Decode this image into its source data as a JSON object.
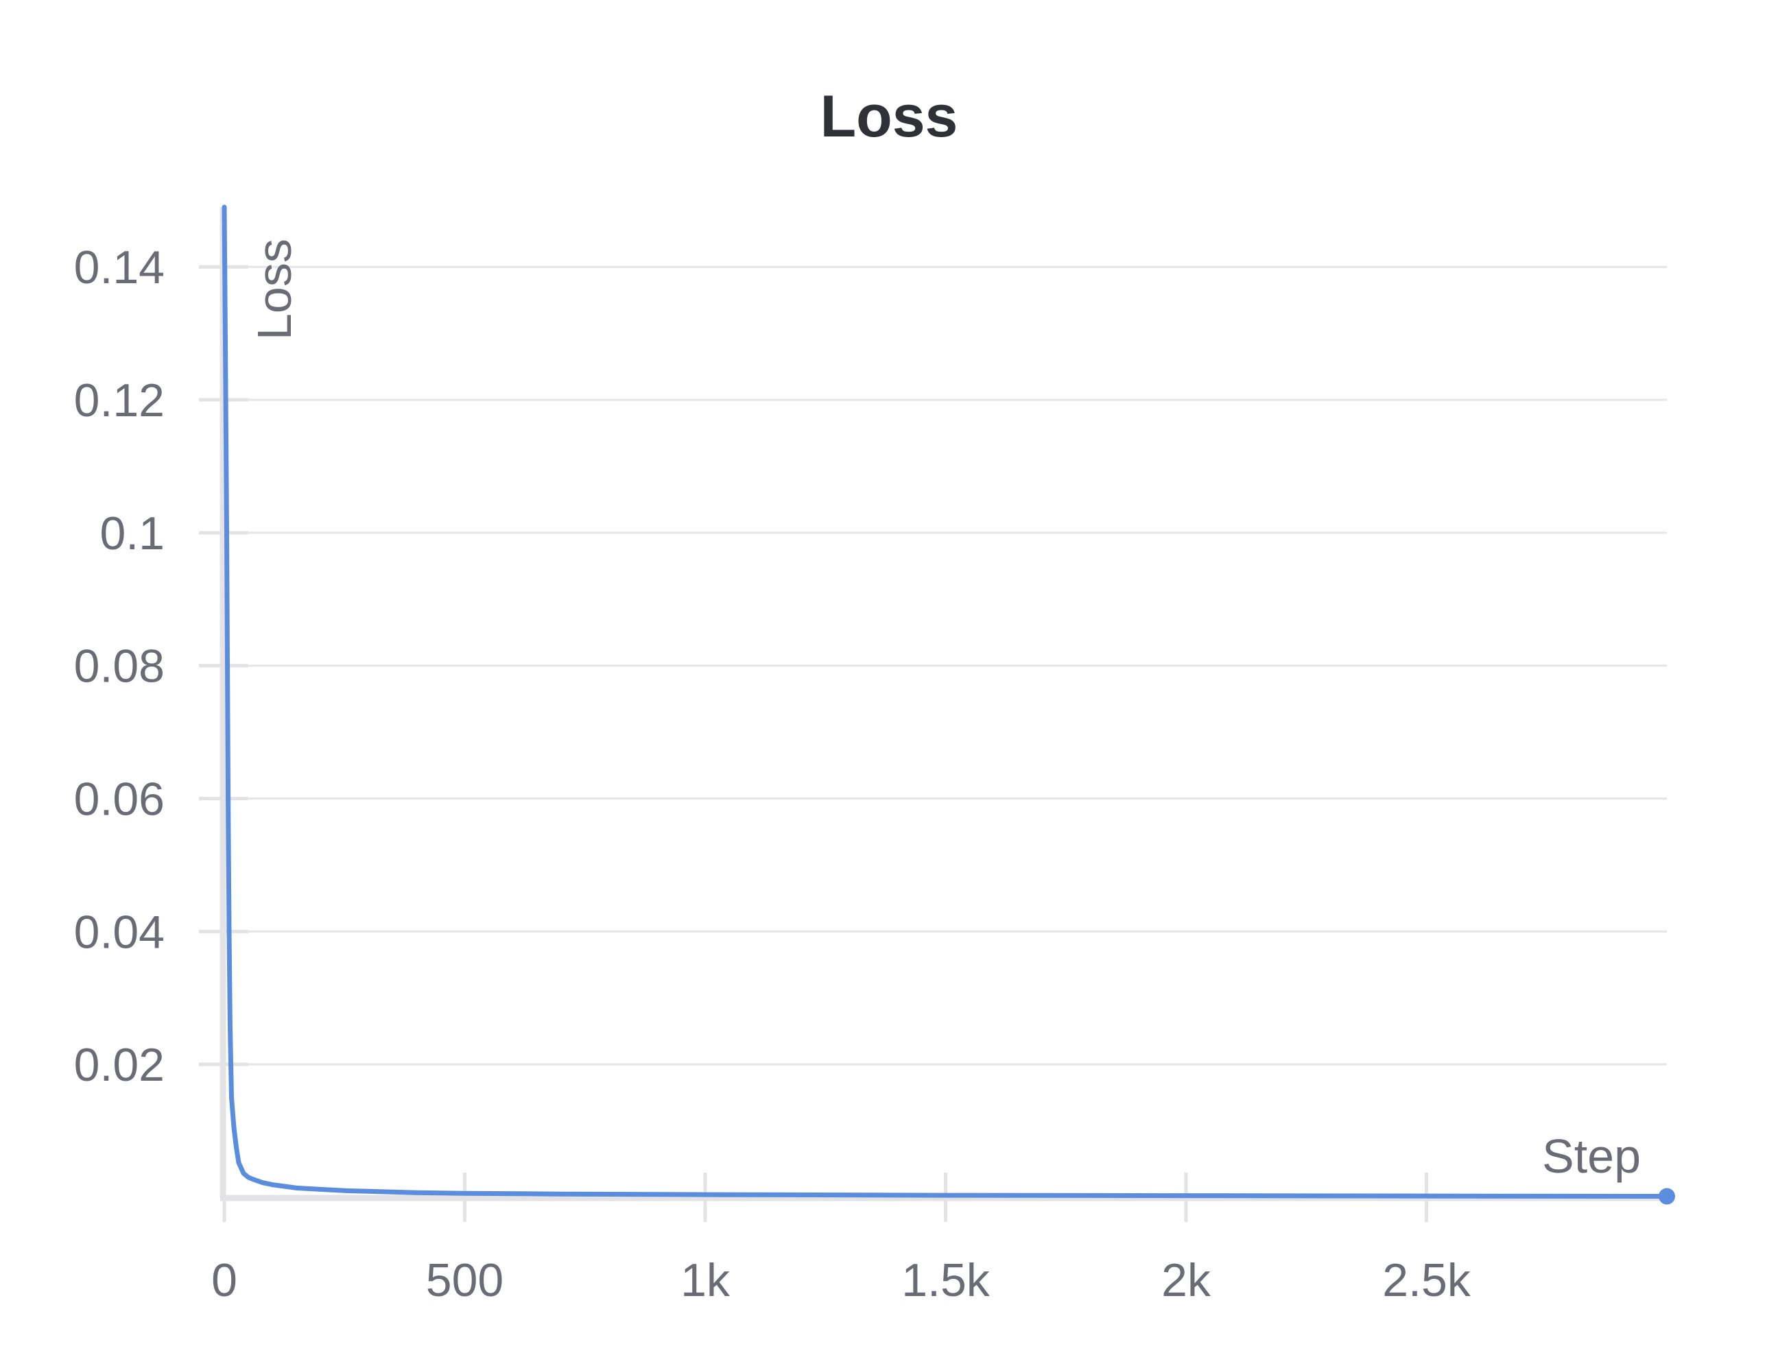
{
  "chart_data": {
    "type": "line",
    "title": "Loss",
    "xlabel": "Step",
    "ylabel": "Loss",
    "xlim": [
      0,
      3000
    ],
    "ylim": [
      0,
      0.149
    ],
    "x_ticks": [
      {
        "value": 0,
        "label": "0"
      },
      {
        "value": 500,
        "label": "500"
      },
      {
        "value": 1000,
        "label": "1k"
      },
      {
        "value": 1500,
        "label": "1.5k"
      },
      {
        "value": 2000,
        "label": "2k"
      },
      {
        "value": 2500,
        "label": "2.5k"
      }
    ],
    "y_ticks": [
      {
        "value": 0.02,
        "label": "0.02"
      },
      {
        "value": 0.04,
        "label": "0.04"
      },
      {
        "value": 0.06,
        "label": "0.06"
      },
      {
        "value": 0.08,
        "label": "0.08"
      },
      {
        "value": 0.1,
        "label": "0.1"
      },
      {
        "value": 0.12,
        "label": "0.12"
      },
      {
        "value": 0.14,
        "label": "0.14"
      }
    ],
    "grid": true,
    "legend": "none",
    "series": [
      {
        "color": "#5b8ddf",
        "x": [
          0,
          2,
          5,
          8,
          10,
          12,
          15,
          20,
          25,
          30,
          40,
          50,
          60,
          80,
          100,
          120,
          150,
          200,
          250,
          300,
          400,
          500,
          700,
          1000,
          1500,
          2000,
          2500,
          3000
        ],
        "y": [
          0.149,
          0.13,
          0.1,
          0.06,
          0.04,
          0.026,
          0.015,
          0.0105,
          0.0075,
          0.0052,
          0.0036,
          0.003,
          0.0027,
          0.0022,
          0.0019,
          0.0017,
          0.0014,
          0.0012,
          0.001,
          0.0009,
          0.0007,
          0.0006,
          0.0005,
          0.0004,
          0.0003,
          0.00025,
          0.0002,
          0.00015
        ]
      }
    ]
  }
}
